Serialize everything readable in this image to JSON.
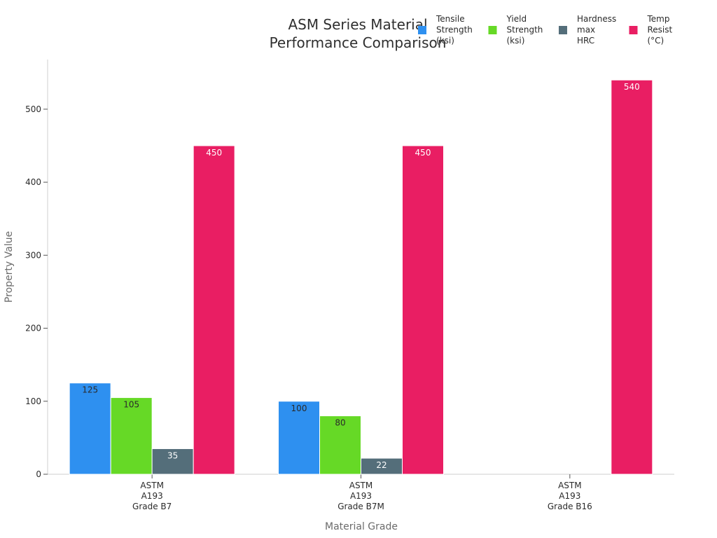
{
  "chart_data": {
    "type": "bar",
    "title": [
      "ASM Series Material",
      "Performance Comparison"
    ],
    "xlabel": "Material Grade",
    "ylabel": "Property Value",
    "ylim": [
      0,
      568
    ],
    "yticks": [
      0,
      100,
      200,
      300,
      400,
      500
    ],
    "grid": false,
    "legend_position": "top-right",
    "categories": [
      [
        "ASTM",
        "A193",
        "Grade B7"
      ],
      [
        "ASTM",
        "A193",
        "Grade B7M"
      ],
      [
        "ASTM",
        "A193",
        "Grade B16"
      ]
    ],
    "series": [
      {
        "name": [
          "Tensile",
          "Strength",
          "(ksi)"
        ],
        "color": "#2e90f0",
        "label_color": "#2a2a2a",
        "values": [
          125,
          100,
          null
        ]
      },
      {
        "name": [
          "Yield",
          "Strength",
          "(ksi)"
        ],
        "color": "#66d926",
        "label_color": "#2a2a2a",
        "values": [
          105,
          80,
          null
        ]
      },
      {
        "name": [
          "Hardness",
          "max",
          "HRC"
        ],
        "color": "#546e7a",
        "label_color": "#ffffff",
        "values": [
          35,
          22,
          null
        ]
      },
      {
        "name": [
          "Temp",
          "Resist",
          "(°C)"
        ],
        "color": "#e91e63",
        "label_color": "#ffffff",
        "values": [
          450,
          450,
          540
        ]
      }
    ]
  }
}
